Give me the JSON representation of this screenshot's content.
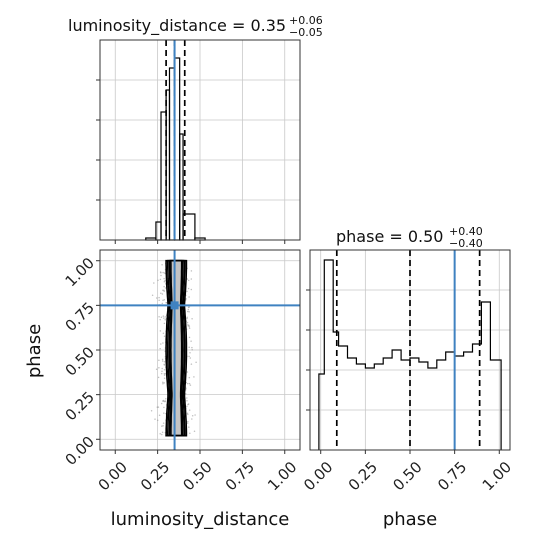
{
  "chart_data": [
    {
      "type": "histogram",
      "panel": "luminosity_distance-marginal",
      "title": {
        "param": "luminosity_distance",
        "value": "0.35",
        "plus": "+0.06",
        "minus": "−0.05"
      },
      "xlim": [
        -0.09,
        1.09
      ],
      "bins": [
        {
          "x0": 0.18,
          "x1": 0.24,
          "h": 0.01
        },
        {
          "x0": 0.24,
          "x1": 0.27,
          "h": 0.09
        },
        {
          "x0": 0.27,
          "x1": 0.3,
          "h": 0.64
        },
        {
          "x0": 0.3,
          "x1": 0.32,
          "h": 0.75
        },
        {
          "x0": 0.32,
          "x1": 0.35,
          "h": 0.86
        },
        {
          "x0": 0.35,
          "x1": 0.38,
          "h": 0.91
        },
        {
          "x0": 0.38,
          "x1": 0.4,
          "h": 0.53
        },
        {
          "x0": 0.4,
          "x1": 0.47,
          "h": 0.13
        },
        {
          "x0": 0.47,
          "x1": 0.53,
          "h": 0.01
        }
      ],
      "quantiles": [
        0.3,
        0.35,
        0.41
      ],
      "truth": 0.35,
      "grid": true
    },
    {
      "type": "contour",
      "panel": "luminosity_distance-vs-phase",
      "xlabel": "luminosity_distance",
      "ylabel": "phase",
      "xlim": [
        -0.09,
        1.09
      ],
      "ylim": [
        -0.06,
        1.06
      ],
      "xticks": [
        "0.00",
        "0.25",
        "0.50",
        "0.75",
        "1.00"
      ],
      "yticks": [
        "0.00",
        "0.25",
        "0.50",
        "0.75",
        "1.00"
      ],
      "truth": {
        "x": 0.35,
        "y": 0.75
      },
      "grid": true
    },
    {
      "type": "histogram",
      "panel": "phase-marginal",
      "title": {
        "param": "phase",
        "value": "0.50",
        "plus": "+0.40",
        "minus": "−0.40"
      },
      "xlabel": "phase",
      "xlim": [
        -0.06,
        1.06
      ],
      "xticks": [
        "0.00",
        "0.25",
        "0.50",
        "0.75",
        "1.00"
      ],
      "bins": [
        {
          "x0": -0.01,
          "x1": 0.02,
          "h": 0.38
        },
        {
          "x0": 0.02,
          "x1": 0.07,
          "h": 0.95
        },
        {
          "x0": 0.07,
          "x1": 0.1,
          "h": 0.59
        },
        {
          "x0": 0.1,
          "x1": 0.15,
          "h": 0.52
        },
        {
          "x0": 0.15,
          "x1": 0.2,
          "h": 0.46
        },
        {
          "x0": 0.2,
          "x1": 0.25,
          "h": 0.43
        },
        {
          "x0": 0.25,
          "x1": 0.3,
          "h": 0.41
        },
        {
          "x0": 0.3,
          "x1": 0.35,
          "h": 0.43
        },
        {
          "x0": 0.35,
          "x1": 0.4,
          "h": 0.46
        },
        {
          "x0": 0.4,
          "x1": 0.45,
          "h": 0.5
        },
        {
          "x0": 0.45,
          "x1": 0.5,
          "h": 0.45
        },
        {
          "x0": 0.5,
          "x1": 0.55,
          "h": 0.46
        },
        {
          "x0": 0.55,
          "x1": 0.6,
          "h": 0.44
        },
        {
          "x0": 0.6,
          "x1": 0.65,
          "h": 0.41
        },
        {
          "x0": 0.65,
          "x1": 0.7,
          "h": 0.45
        },
        {
          "x0": 0.7,
          "x1": 0.75,
          "h": 0.49
        },
        {
          "x0": 0.75,
          "x1": 0.8,
          "h": 0.47
        },
        {
          "x0": 0.8,
          "x1": 0.85,
          "h": 0.49
        },
        {
          "x0": 0.85,
          "x1": 0.9,
          "h": 0.53
        },
        {
          "x0": 0.9,
          "x1": 0.95,
          "h": 0.74
        },
        {
          "x0": 0.95,
          "x1": 1.01,
          "h": 0.45
        }
      ],
      "quantiles": [
        0.09,
        0.5,
        0.89
      ],
      "truth": 0.75,
      "grid": true
    }
  ],
  "colors": {
    "truth": "#3f82c1",
    "hist": "#000000",
    "quantile": "#000000",
    "grid": "#c8c8c8",
    "scatter": "#8c8c8c"
  }
}
